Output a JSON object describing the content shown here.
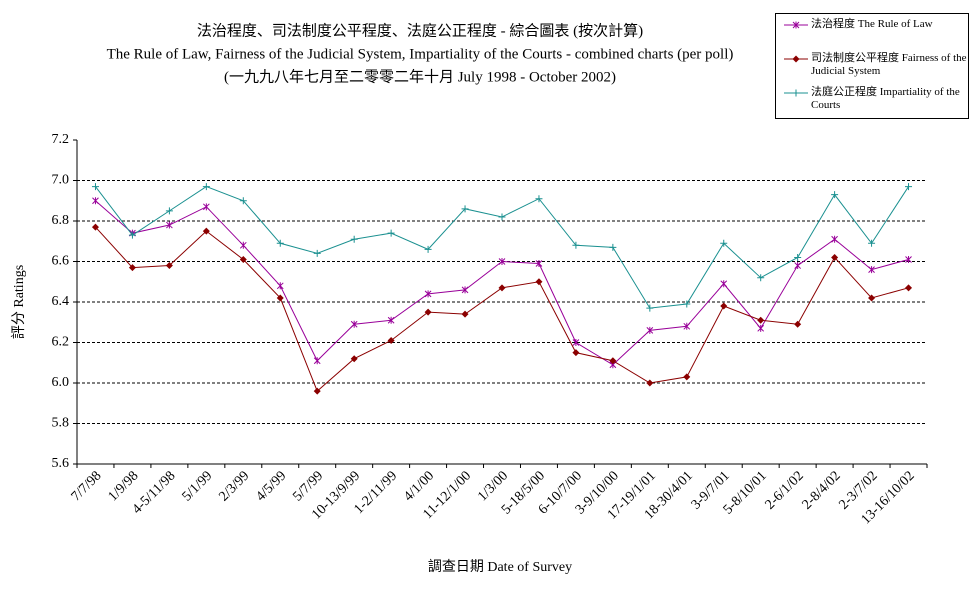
{
  "chart_data": {
    "type": "line",
    "title": "法治程度、司法制度公平程度、法庭公正程度 - 綜合圖表 (按次計算)",
    "subtitle": "The Rule of Law, Fairness of the Judicial System, Impartiality of the Courts - combined charts (per poll)",
    "subtitle2": "(一九九八年七月至二零零二年十月 July 1998 - October 2002)",
    "x_label": "調查日期 Date of Survey",
    "y_label": "評分 Ratings",
    "categories": [
      "7/7/98",
      "1/9/98",
      "4-5/11/98",
      "5/1/99",
      "2/3/99",
      "4/5/99",
      "5/7/99",
      "10-13/9/99",
      "1-2/11/99",
      "4/1/00",
      "11-12/1/00",
      "1/3/00",
      "5-18/5/00",
      "6-10/7/00",
      "3-9/10/00",
      "17-19/1/01",
      "18-30/4/01",
      "3-9/7/01",
      "5-8/10/01",
      "2-6/1/02",
      "2-8/4/02",
      "2-3/7/02",
      "13-16/10/02"
    ],
    "series": [
      {
        "name": "法治程度 The Rule of Law",
        "color": "#990099",
        "marker": "star",
        "values": [
          6.9,
          6.74,
          6.78,
          6.87,
          6.68,
          6.48,
          6.11,
          6.29,
          6.31,
          6.44,
          6.46,
          6.6,
          6.59,
          6.2,
          6.09,
          6.26,
          6.28,
          6.49,
          6.27,
          6.58,
          6.71,
          6.56,
          6.61
        ]
      },
      {
        "name": "司法制度公平程度 Fairness of the Judicial System",
        "color": "#8b0000",
        "marker": "diamond",
        "values": [
          6.77,
          6.57,
          6.58,
          6.75,
          6.61,
          6.42,
          5.96,
          6.12,
          6.21,
          6.35,
          6.34,
          6.47,
          6.5,
          6.15,
          6.11,
          6.0,
          6.03,
          6.38,
          6.31,
          6.29,
          6.62,
          6.42,
          6.47
        ]
      },
      {
        "name": "法庭公正程度 Impartiality of the Courts",
        "color": "#1a9090",
        "marker": "plus",
        "values": [
          6.97,
          6.73,
          6.85,
          6.97,
          6.9,
          6.69,
          6.64,
          6.71,
          6.74,
          6.66,
          6.86,
          6.82,
          6.91,
          6.68,
          6.67,
          6.37,
          6.39,
          6.69,
          6.52,
          6.62,
          6.93,
          6.69,
          6.97
        ]
      }
    ],
    "ylim": [
      5.6,
      7.2
    ],
    "yticks": [
      5.6,
      5.8,
      {
        "value": 6,
        "label": "6.0"
      },
      6.2,
      6.4,
      6.6,
      6.8,
      {
        "value": 7,
        "label": "7.0"
      },
      7.2
    ],
    "grid": true,
    "legend": "top-right"
  }
}
